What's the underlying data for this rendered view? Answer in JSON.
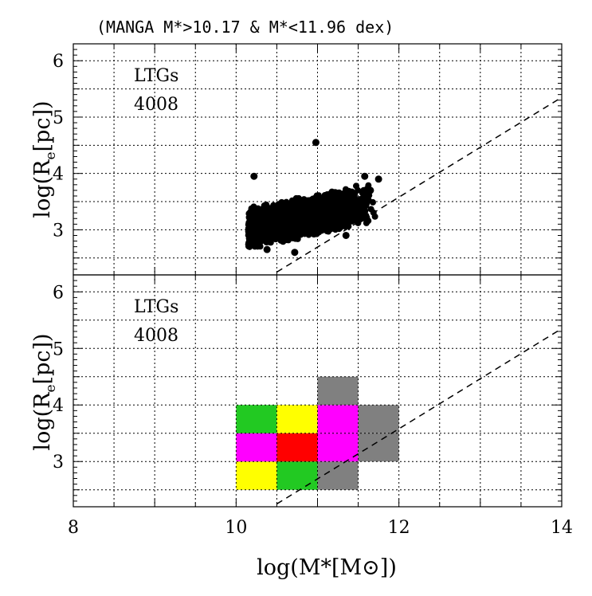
{
  "chart_data": [
    {
      "type": "scatter",
      "title": "(MANGA M*>10.17 & M*<11.96 dex)",
      "xlabel": "log(M*[M⊙])",
      "ylabel_main": "log(R",
      "ylabel_sub": "e",
      "ylabel_end": "[pc])",
      "xlim": [
        8,
        14
      ],
      "ylim": [
        2.2,
        6.3
      ],
      "xticks": [
        8,
        10,
        12,
        14
      ],
      "yticks": [
        3,
        4,
        5,
        6
      ],
      "grid": true,
      "annotations": [
        "LTGs",
        "4008"
      ],
      "reference_line": {
        "style": "dashed",
        "x": [
          10.5,
          14
        ],
        "y": [
          2.25,
          5.35
        ]
      },
      "cloud": {
        "x_min": 10.15,
        "x_max": 11.75,
        "y_center_at_x_min": 3.02,
        "slope": 0.3,
        "y_spread": 0.62,
        "count": 4008
      },
      "outliers": [
        {
          "x": 10.98,
          "y": 4.55
        },
        {
          "x": 10.72,
          "y": 2.6
        },
        {
          "x": 10.38,
          "y": 2.65
        },
        {
          "x": 11.58,
          "y": 3.95
        },
        {
          "x": 11.75,
          "y": 3.9
        },
        {
          "x": 11.35,
          "y": 2.9
        },
        {
          "x": 10.22,
          "y": 3.95
        },
        {
          "x": 11.65,
          "y": 3.7
        }
      ]
    },
    {
      "type": "heatmap",
      "xlabel": "log(M*[M⊙])",
      "xlim": [
        8,
        14
      ],
      "ylim": [
        2.2,
        6.3
      ],
      "xticks": [
        8,
        10,
        12,
        14
      ],
      "yticks": [
        3,
        4,
        5,
        6
      ],
      "grid": true,
      "annotations": [
        "LTGs",
        "4008"
      ],
      "reference_line": {
        "style": "dashed",
        "x": [
          10.5,
          14
        ],
        "y": [
          2.25,
          5.35
        ]
      },
      "bin_width": 0.5,
      "bin_height": 0.5,
      "cells": [
        {
          "x": 10.0,
          "y": 2.5,
          "color": "#ffff00"
        },
        {
          "x": 10.5,
          "y": 2.5,
          "color": "#22c922"
        },
        {
          "x": 11.0,
          "y": 2.5,
          "color": "#808080"
        },
        {
          "x": 10.0,
          "y": 3.0,
          "color": "#ff00ff"
        },
        {
          "x": 10.5,
          "y": 3.0,
          "color": "#ff0000"
        },
        {
          "x": 11.0,
          "y": 3.0,
          "color": "#ff00ff"
        },
        {
          "x": 11.5,
          "y": 3.0,
          "color": "#808080"
        },
        {
          "x": 10.0,
          "y": 3.5,
          "color": "#22c922"
        },
        {
          "x": 10.5,
          "y": 3.5,
          "color": "#ffff00"
        },
        {
          "x": 11.0,
          "y": 3.5,
          "color": "#ff00ff"
        },
        {
          "x": 11.5,
          "y": 3.5,
          "color": "#808080"
        },
        {
          "x": 11.0,
          "y": 4.0,
          "color": "#808080"
        }
      ]
    }
  ]
}
